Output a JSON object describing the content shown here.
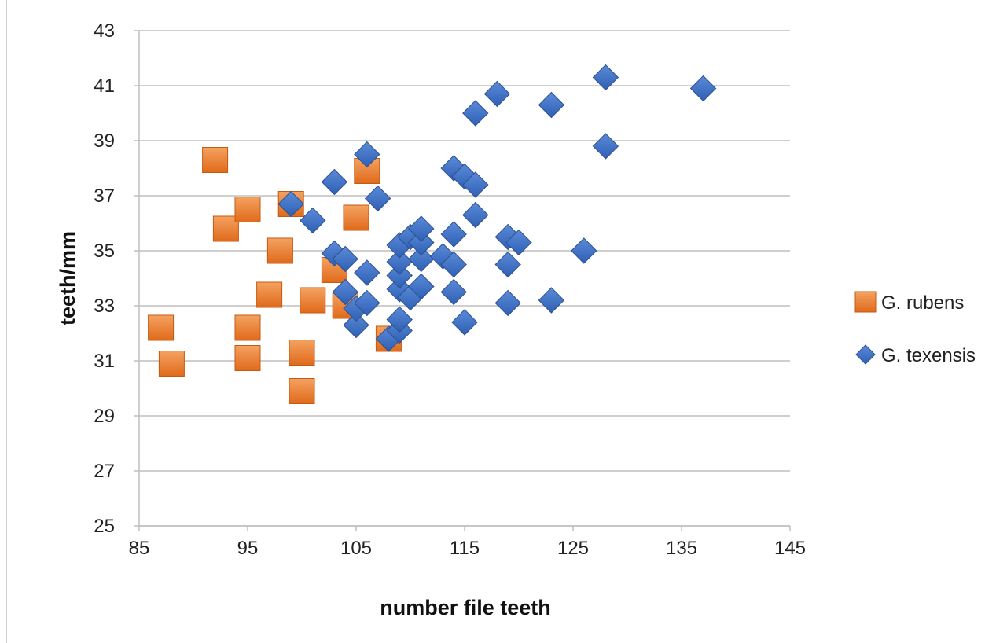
{
  "chart_data": {
    "type": "scatter",
    "title": "",
    "xlabel": "number file teeth",
    "ylabel": "teeth/mm",
    "xlim": [
      85,
      145
    ],
    "ylim": [
      25,
      43
    ],
    "xticks": [
      "85",
      "95",
      "105",
      "115",
      "125",
      "135",
      "145"
    ],
    "yticks": [
      "25",
      "27",
      "29",
      "31",
      "33",
      "35",
      "37",
      "39",
      "41",
      "43"
    ],
    "grid": "horizontal",
    "legend_position": "right",
    "series": [
      {
        "name": "G. rubens",
        "marker": "square",
        "color": "#ED7D31",
        "points": [
          [
            87,
            32.2
          ],
          [
            88,
            30.9
          ],
          [
            92,
            38.3
          ],
          [
            93,
            35.8
          ],
          [
            95,
            36.5
          ],
          [
            95,
            32.2
          ],
          [
            95,
            31.1
          ],
          [
            97,
            33.4
          ],
          [
            98,
            35.0
          ],
          [
            99,
            36.7
          ],
          [
            100,
            31.3
          ],
          [
            100,
            29.9
          ],
          [
            101,
            33.2
          ],
          [
            103,
            34.3
          ],
          [
            104,
            33.0
          ],
          [
            105,
            36.2
          ],
          [
            106,
            37.9
          ],
          [
            108,
            31.8
          ]
        ]
      },
      {
        "name": "G. texensis",
        "marker": "diamond",
        "color": "#4472C4",
        "points": [
          [
            99,
            36.7
          ],
          [
            101,
            36.1
          ],
          [
            103,
            37.5
          ],
          [
            103,
            34.9
          ],
          [
            104,
            34.7
          ],
          [
            104,
            33.5
          ],
          [
            105,
            32.3
          ],
          [
            105,
            32.9
          ],
          [
            106,
            33.1
          ],
          [
            106,
            34.2
          ],
          [
            106,
            38.5
          ],
          [
            107,
            36.9
          ],
          [
            108,
            31.8
          ],
          [
            109,
            32.1
          ],
          [
            109,
            32.5
          ],
          [
            109,
            33.6
          ],
          [
            109,
            34.1
          ],
          [
            109,
            34.6
          ],
          [
            109,
            35.2
          ],
          [
            110,
            33.3
          ],
          [
            110,
            35.5
          ],
          [
            111,
            33.7
          ],
          [
            111,
            34.7
          ],
          [
            111,
            35.3
          ],
          [
            111,
            35.8
          ],
          [
            113,
            34.8
          ],
          [
            114,
            38.0
          ],
          [
            114,
            35.6
          ],
          [
            114,
            34.5
          ],
          [
            114,
            33.5
          ],
          [
            115,
            37.7
          ],
          [
            115,
            32.4
          ],
          [
            116,
            40.0
          ],
          [
            116,
            37.4
          ],
          [
            116,
            36.3
          ],
          [
            118,
            40.7
          ],
          [
            119,
            35.5
          ],
          [
            119,
            34.5
          ],
          [
            119,
            33.1
          ],
          [
            120,
            35.3
          ],
          [
            123,
            40.3
          ],
          [
            123,
            33.2
          ],
          [
            126,
            35.0
          ],
          [
            128,
            41.3
          ],
          [
            128,
            38.8
          ],
          [
            137,
            40.9
          ]
        ]
      }
    ]
  }
}
